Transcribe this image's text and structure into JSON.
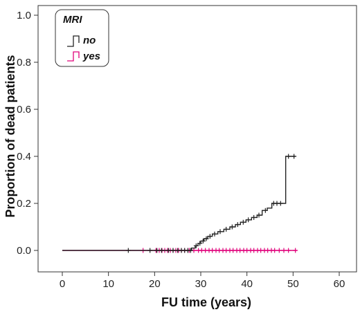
{
  "chart_data": {
    "type": "line",
    "subtype": "kaplan-meier-cumulative-incidence",
    "xlabel": "FU time (years)",
    "ylabel": "Proportion of dead patients",
    "xlim": [
      0,
      60
    ],
    "ylim": [
      0,
      1.0
    ],
    "x_ticks": [
      "0",
      "10",
      "20",
      "30",
      "40",
      "50",
      "60"
    ],
    "y_ticks": [
      "0.0",
      "0.2",
      "0.4",
      "0.6",
      "0.8",
      "1.0"
    ],
    "grid": false,
    "legend": {
      "title": "MRI",
      "placement": "top-left",
      "entries": [
        "no",
        "yes"
      ]
    },
    "series": [
      {
        "name": "no",
        "color": "#222222",
        "steps": [
          [
            0,
            0.0
          ],
          [
            28.0,
            0.01
          ],
          [
            28.8,
            0.02
          ],
          [
            29.4,
            0.03
          ],
          [
            30.0,
            0.04
          ],
          [
            30.7,
            0.05
          ],
          [
            31.5,
            0.06
          ],
          [
            32.5,
            0.07
          ],
          [
            33.7,
            0.08
          ],
          [
            35.0,
            0.09
          ],
          [
            36.3,
            0.1
          ],
          [
            37.5,
            0.11
          ],
          [
            38.6,
            0.12
          ],
          [
            39.8,
            0.13
          ],
          [
            41.0,
            0.14
          ],
          [
            42.2,
            0.15
          ],
          [
            43.3,
            0.17
          ],
          [
            44.4,
            0.18
          ],
          [
            45.4,
            0.2
          ],
          [
            48.4,
            0.4
          ]
        ],
        "end_x": 50.5,
        "censor_x": [
          14.3,
          19.0,
          20.5,
          21.5,
          23.0,
          24.0,
          25.0,
          25.8,
          26.5,
          27.2,
          27.8,
          29.0,
          29.8,
          30.5,
          31.2,
          32.0,
          33.0,
          34.2,
          35.5,
          36.8,
          38.0,
          39.2,
          40.3,
          41.5,
          42.6,
          44.0,
          45.8,
          46.5,
          47.3,
          49.0,
          50.2
        ]
      },
      {
        "name": "yes",
        "color": "#e0007a",
        "steps": [
          [
            0,
            0.0
          ]
        ],
        "end_x": 50.8,
        "censor_x": [
          17.5,
          20.3,
          21.0,
          21.6,
          22.2,
          22.8,
          23.4,
          24.0,
          24.6,
          25.2,
          25.8,
          26.5,
          27.5,
          28.5,
          29.5,
          30.2,
          31.0,
          31.8,
          32.5,
          33.3,
          34.0,
          34.8,
          35.5,
          36.3,
          37.0,
          37.8,
          38.5,
          39.3,
          40.0,
          40.8,
          41.5,
          42.3,
          43.0,
          43.8,
          44.5,
          45.3,
          46.0,
          47.0,
          48.0,
          49.0,
          50.5
        ]
      }
    ]
  }
}
